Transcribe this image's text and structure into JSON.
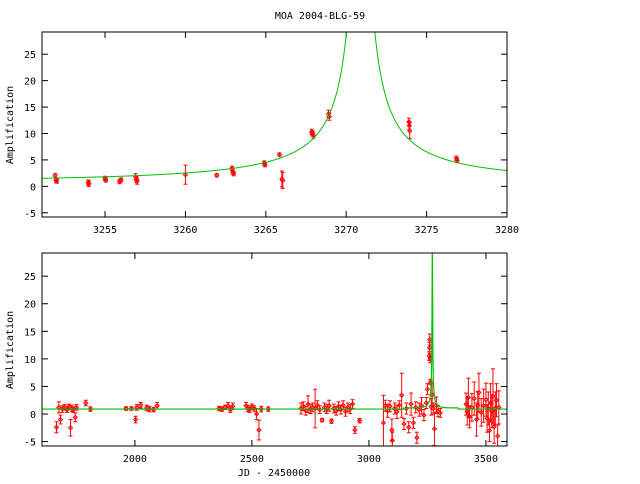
{
  "colors": {
    "data": "#ff0000",
    "model": "#00c000",
    "axis": "#000000"
  },
  "chart_data": [
    {
      "type": "scatter",
      "title": "MOA 2004-BLG-59",
      "xlabel": "",
      "ylabel": "Amplification",
      "xlim": [
        3251.08,
        3280
      ],
      "ylim": [
        -5.8,
        29.2
      ],
      "xticks": [
        3255,
        3260,
        3265,
        3270,
        3275,
        3280
      ],
      "yticks": [
        -5,
        0,
        5,
        10,
        15,
        20,
        25
      ],
      "grid": false,
      "model": {
        "t0": 3270.9,
        "tE": 27,
        "u0": 0.01,
        "baseline": 0.9
      },
      "points": [
        [
          3251.9,
          2.0,
          0.4
        ],
        [
          3251.95,
          1.2,
          0.4
        ],
        [
          3252.0,
          1.0,
          0.4
        ],
        [
          3253.95,
          0.7,
          0.5
        ],
        [
          3254.0,
          0.5,
          0.5
        ],
        [
          3255.0,
          1.5,
          0.4
        ],
        [
          3255.05,
          1.2,
          0.4
        ],
        [
          3255.9,
          0.9,
          0.4
        ],
        [
          3256.0,
          1.2,
          0.4
        ],
        [
          3256.9,
          1.8,
          0.6
        ],
        [
          3256.95,
          1.3,
          0.6
        ],
        [
          3257.0,
          1.0,
          0.6
        ],
        [
          3260.0,
          2.2,
          1.8
        ],
        [
          3261.95,
          2.1,
          0.3
        ],
        [
          3262.9,
          3.4,
          0.4
        ],
        [
          3262.95,
          2.7,
          0.4
        ],
        [
          3263.0,
          2.4,
          0.4
        ],
        [
          3264.9,
          4.4,
          0.4
        ],
        [
          3264.95,
          4.1,
          0.4
        ],
        [
          3265.85,
          6.0,
          0.3
        ],
        [
          3266.0,
          1.4,
          1.5
        ],
        [
          3266.05,
          1.1,
          1.5
        ],
        [
          3267.85,
          10.3,
          0.5
        ],
        [
          3267.9,
          10.0,
          0.5
        ],
        [
          3267.95,
          9.7,
          0.6
        ],
        [
          3268.9,
          13.7,
          0.7
        ],
        [
          3268.95,
          13.2,
          0.7
        ],
        [
          3273.9,
          12.2,
          0.7
        ],
        [
          3273.92,
          11.5,
          0.7
        ],
        [
          3273.95,
          10.5,
          1.5
        ],
        [
          3276.85,
          5.3,
          0.4
        ],
        [
          3276.9,
          4.9,
          0.4
        ]
      ]
    },
    {
      "type": "scatter",
      "title": "",
      "xlabel": "JD - 2450000",
      "ylabel": "Amplification",
      "xlim": [
        1603,
        3590
      ],
      "ylim": [
        -5.8,
        29.2
      ],
      "xticks": [
        2000,
        2500,
        3000,
        3500
      ],
      "yticks": [
        -5,
        0,
        5,
        10,
        15,
        20,
        25
      ],
      "grid": false,
      "model": {
        "t0": 3270.9,
        "tE": 27,
        "u0": 0.01,
        "baseline": 0.9,
        "plateau": {
          "from": 3150,
          "to": 3380,
          "level": 1.1
        }
      },
      "points": [
        [
          1665,
          -2.4,
          1.0
        ],
        [
          1675,
          1.2,
          1.0
        ],
        [
          1682,
          -1.0,
          0.8
        ],
        [
          1690,
          0.9,
          0.6
        ],
        [
          1700,
          1.2,
          0.5
        ],
        [
          1710,
          0.8,
          0.5
        ],
        [
          1718,
          1.3,
          0.5
        ],
        [
          1725,
          -2.5,
          1.5
        ],
        [
          1730,
          1.0,
          0.6
        ],
        [
          1738,
          0.8,
          0.5
        ],
        [
          1745,
          -0.6,
          0.8
        ],
        [
          1750,
          1.2,
          0.5
        ],
        [
          1790,
          2.0,
          0.5
        ],
        [
          1810,
          0.9,
          0.4
        ],
        [
          1962,
          1.0,
          0.3
        ],
        [
          1985,
          1.0,
          0.3
        ],
        [
          2003,
          -1.0,
          0.6
        ],
        [
          2008,
          1.2,
          0.5
        ],
        [
          2025,
          1.6,
          0.5
        ],
        [
          2050,
          1.1,
          0.5
        ],
        [
          2062,
          0.9,
          0.5
        ],
        [
          2080,
          0.8,
          0.4
        ],
        [
          2095,
          1.5,
          0.6
        ],
        [
          2360,
          1.0,
          0.4
        ],
        [
          2372,
          0.9,
          0.4
        ],
        [
          2385,
          1.2,
          0.4
        ],
        [
          2398,
          1.5,
          0.6
        ],
        [
          2408,
          0.8,
          0.5
        ],
        [
          2418,
          1.4,
          0.6
        ],
        [
          2475,
          1.5,
          0.6
        ],
        [
          2482,
          1.0,
          0.6
        ],
        [
          2490,
          0.8,
          0.5
        ],
        [
          2500,
          1.3,
          0.5
        ],
        [
          2510,
          1.0,
          0.5
        ],
        [
          2520,
          0.0,
          1.0
        ],
        [
          2530,
          -2.9,
          1.8
        ],
        [
          2540,
          0.9,
          0.5
        ],
        [
          2570,
          0.9,
          0.4
        ],
        [
          2710,
          1.0,
          1.0
        ],
        [
          2720,
          1.4,
          0.8
        ],
        [
          2730,
          0.6,
          0.8
        ],
        [
          2740,
          1.8,
          1.5
        ],
        [
          2750,
          0.9,
          0.8
        ],
        [
          2760,
          1.2,
          0.8
        ],
        [
          2770,
          1.0,
          3.5
        ],
        [
          2780,
          1.6,
          0.8
        ],
        [
          2790,
          0.8,
          0.7
        ],
        [
          2800,
          -1.1,
          0.3
        ],
        [
          2810,
          1.2,
          0.8
        ],
        [
          2820,
          0.9,
          0.8
        ],
        [
          2830,
          1.5,
          1.0
        ],
        [
          2840,
          -1.3,
          0.4
        ],
        [
          2850,
          1.0,
          0.8
        ],
        [
          2860,
          0.6,
          0.8
        ],
        [
          2870,
          1.4,
          0.8
        ],
        [
          2880,
          0.8,
          0.8
        ],
        [
          2890,
          1.6,
          0.8
        ],
        [
          2900,
          0.4,
          0.8
        ],
        [
          2910,
          1.2,
          0.8
        ],
        [
          2920,
          0.9,
          0.8
        ],
        [
          2930,
          1.8,
          0.8
        ],
        [
          2940,
          -2.9,
          0.6
        ],
        [
          2960,
          -1.2,
          0.4
        ],
        [
          3062,
          -1.6,
          5.0
        ],
        [
          3070,
          1.5,
          1.0
        ],
        [
          3080,
          0.6,
          1.2
        ],
        [
          3090,
          1.4,
          1.0
        ],
        [
          3098,
          -2.9,
          2.0
        ],
        [
          3100,
          -4.8,
          1.5
        ],
        [
          3110,
          1.0,
          1.0
        ],
        [
          3120,
          0.4,
          1.2
        ],
        [
          3130,
          1.6,
          0.8
        ],
        [
          3140,
          3.4,
          4.0
        ],
        [
          3150,
          -1.8,
          1.0
        ],
        [
          3160,
          1.0,
          1.0
        ],
        [
          3170,
          -2.4,
          1.0
        ],
        [
          3180,
          1.8,
          2.0
        ],
        [
          3190,
          -1.6,
          1.0
        ],
        [
          3200,
          1.2,
          1.0
        ],
        [
          3205,
          -4.3,
          1.0
        ],
        [
          3215,
          0.8,
          1.2
        ],
        [
          3225,
          1.5,
          1.5
        ],
        [
          3235,
          -0.2,
          1.0
        ],
        [
          3245,
          2.0,
          1.0
        ],
        [
          3250,
          4.5,
          1.0
        ],
        [
          3258,
          10.5,
          0.8
        ],
        [
          3259,
          12.0,
          1.0
        ],
        [
          3260,
          13.5,
          1.0
        ],
        [
          3262,
          10.0,
          0.7
        ],
        [
          3263,
          5.8,
          0.5
        ],
        [
          3266,
          1.3,
          1.5
        ],
        [
          3270,
          3.5,
          2.0
        ],
        [
          3275,
          1.0,
          1.0
        ],
        [
          3280,
          -2.7,
          3.0
        ],
        [
          3288,
          1.6,
          1.5
        ],
        [
          3295,
          0.5,
          1.0
        ],
        [
          3305,
          0.2,
          0.8
        ],
        [
          3415,
          1.8,
          2.0
        ],
        [
          3420,
          0.5,
          2.5
        ],
        [
          3425,
          3.0,
          3.5
        ],
        [
          3430,
          -0.5,
          2.0
        ],
        [
          3440,
          1.2,
          2.5
        ],
        [
          3450,
          2.8,
          3.0
        ],
        [
          3460,
          -1.0,
          3.0
        ],
        [
          3465,
          1.6,
          2.5
        ],
        [
          3470,
          3.9,
          3.5
        ],
        [
          3480,
          0.3,
          2.5
        ],
        [
          3490,
          1.5,
          3.0
        ],
        [
          3500,
          2.6,
          3.0
        ],
        [
          3505,
          -0.8,
          2.5
        ],
        [
          3510,
          1.0,
          3.0
        ],
        [
          3515,
          -3.0,
          2.0
        ],
        [
          3520,
          2.0,
          3.5
        ],
        [
          3525,
          0.5,
          3.0
        ],
        [
          3530,
          3.2,
          5.0
        ],
        [
          3535,
          -2.3,
          3.0
        ],
        [
          3540,
          1.0,
          3.0
        ],
        [
          3545,
          2.5,
          3.0
        ],
        [
          3550,
          -4.0,
          2.0
        ],
        [
          3555,
          1.2,
          3.0
        ]
      ]
    }
  ]
}
